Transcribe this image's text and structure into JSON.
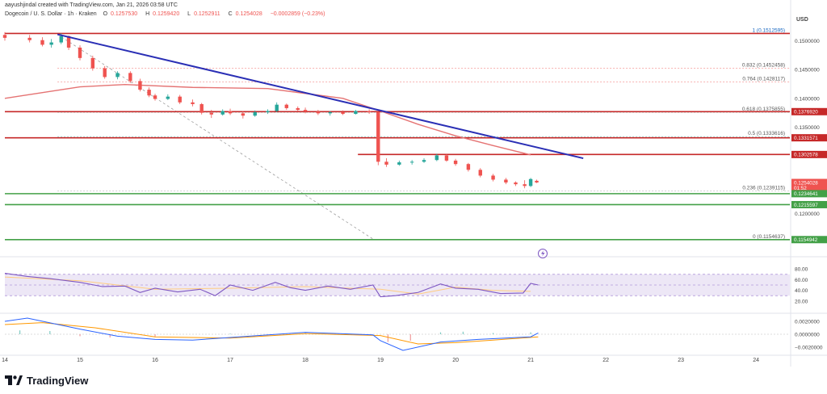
{
  "header": {
    "publisher": "aayushjindal created with TradingView.com, Jan 21, 2026 03:58 UTC",
    "symbol": "Dogecoin / U. S. Dollar · 1h · Kraken",
    "ohlc": [
      {
        "label": "O",
        "value": "0.1257530"
      },
      {
        "label": "H",
        "value": "0.1259420"
      },
      {
        "label": "L",
        "value": "0.1252911"
      },
      {
        "label": "C",
        "value": "0.1254028"
      },
      {
        "label": "",
        "value": "−0.0002859 (−0.23%)"
      }
    ]
  },
  "price_axis": {
    "currency": "USD",
    "ticks": [
      "0.1500000",
      "0.1450000",
      "0.1400000",
      "0.1350000",
      "0.1200000"
    ]
  },
  "price_tags": [
    {
      "text": "0.1376920",
      "price": 0.137692,
      "color": "#c62828"
    },
    {
      "text": "0.1331571",
      "price": 0.1331571,
      "color": "#c62828"
    },
    {
      "text": "0.1302578",
      "price": 0.1302578,
      "color": "#c62828"
    },
    {
      "text": "0.1254028",
      "price": 0.1254028,
      "color": "#ef5350",
      "sub": "01:52"
    },
    {
      "text": "0.1234641",
      "price": 0.1234641,
      "color": "#43a047"
    },
    {
      "text": "0.1215597",
      "price": 0.1215597,
      "color": "#43a047"
    },
    {
      "text": "0.1154942",
      "price": 0.1154942,
      "color": "#43a047"
    }
  ],
  "fibonacci": [
    {
      "label": "1 (0.1512595)",
      "level": 1,
      "price": 0.1512595
    },
    {
      "label": "0.832 (0.1452458)",
      "level": 0.832,
      "price": 0.1452458
    },
    {
      "label": "0.764 (0.1428117)",
      "level": 0.764,
      "price": 0.1428117
    },
    {
      "label": "0.618 (0.1375855)",
      "level": 0.618,
      "price": 0.1375855
    },
    {
      "label": "0.5 (0.1333616)",
      "level": 0.5,
      "price": 0.1333616
    },
    {
      "label": "0.236 (0.1239115)",
      "level": 0.236,
      "price": 0.1239115
    },
    {
      "label": "0 (0.1154637)",
      "level": 0,
      "price": 0.1154637
    }
  ],
  "time_axis": [
    "14",
    "15",
    "16",
    "17",
    "18",
    "19",
    "20",
    "21",
    "22",
    "23",
    "24"
  ],
  "rsi_axis": [
    "80.00",
    "60.00",
    "40.00",
    "20.00"
  ],
  "macd_axis": [
    "0.0020000",
    "0.0000000",
    "−0.0020000"
  ],
  "colors": {
    "up": "#26a69a",
    "down": "#ef5350",
    "resistance": "#c62828",
    "support": "#43a047",
    "trendline": "#2a2fb5",
    "ma": "#e57373",
    "rsi": "#7e57c2",
    "rsi_band": "#ede7f6",
    "macd": "#2962ff",
    "signal": "#ff9800"
  },
  "footer": {
    "brand": "TradingView",
    "logo_icon": "tradingview-logo-icon"
  },
  "chart_data": {
    "type": "candlestick",
    "x_unit": "day of January (hourly bars)",
    "y_unit": "USD",
    "ylim": [
      0.1128,
      0.1537
    ],
    "xlim": [
      14.0,
      24.45
    ],
    "ohlc": [
      [
        14.0,
        0.151,
        0.1515,
        0.15,
        0.1505
      ],
      [
        14.33,
        0.1505,
        0.151,
        0.1497,
        0.1501
      ],
      [
        14.5,
        0.1501,
        0.1506,
        0.149,
        0.1493
      ],
      [
        14.62,
        0.1493,
        0.1503,
        0.1488,
        0.1497
      ],
      [
        14.75,
        0.1497,
        0.1513,
        0.1494,
        0.1508
      ],
      [
        14.85,
        0.1508,
        0.1509,
        0.1484,
        0.1488
      ],
      [
        15.0,
        0.1488,
        0.1492,
        0.1466,
        0.147
      ],
      [
        15.17,
        0.147,
        0.1474,
        0.1448,
        0.1452
      ],
      [
        15.33,
        0.1452,
        0.1456,
        0.1434,
        0.1437
      ],
      [
        15.5,
        0.1437,
        0.1447,
        0.1433,
        0.1444
      ],
      [
        15.67,
        0.1444,
        0.1447,
        0.1427,
        0.143
      ],
      [
        15.8,
        0.143,
        0.1434,
        0.1412,
        0.1415
      ],
      [
        15.92,
        0.1415,
        0.1419,
        0.1402,
        0.1405
      ],
      [
        16.0,
        0.1405,
        0.1408,
        0.1396,
        0.1399
      ],
      [
        16.17,
        0.1399,
        0.1407,
        0.1397,
        0.1403
      ],
      [
        16.33,
        0.1403,
        0.1406,
        0.139,
        0.1393
      ],
      [
        16.5,
        0.1393,
        0.1398,
        0.1386,
        0.139
      ],
      [
        16.62,
        0.139,
        0.1392,
        0.1372,
        0.1375
      ],
      [
        16.75,
        0.1375,
        0.138,
        0.1366,
        0.1372
      ],
      [
        16.9,
        0.1372,
        0.1381,
        0.137,
        0.1378
      ],
      [
        17.0,
        0.1378,
        0.1382,
        0.1371,
        0.1374
      ],
      [
        17.17,
        0.1374,
        0.1378,
        0.1365,
        0.137
      ],
      [
        17.33,
        0.137,
        0.1379,
        0.1368,
        0.1376
      ],
      [
        17.5,
        0.1376,
        0.1381,
        0.1373,
        0.1378
      ],
      [
        17.62,
        0.1378,
        0.1393,
        0.1376,
        0.1389
      ],
      [
        17.75,
        0.1389,
        0.1391,
        0.138,
        0.1383
      ],
      [
        17.9,
        0.1383,
        0.1386,
        0.1377,
        0.138
      ],
      [
        18.0,
        0.138,
        0.1384,
        0.1374,
        0.1377
      ],
      [
        18.17,
        0.1377,
        0.138,
        0.1371,
        0.1374
      ],
      [
        18.33,
        0.1374,
        0.1378,
        0.137,
        0.1376
      ],
      [
        18.5,
        0.1376,
        0.1379,
        0.1371,
        0.1373
      ],
      [
        18.67,
        0.1373,
        0.138,
        0.1372,
        0.1378
      ],
      [
        18.85,
        0.1378,
        0.1381,
        0.1373,
        0.1376
      ],
      [
        18.97,
        0.1376,
        0.1377,
        0.1284,
        0.129
      ],
      [
        19.08,
        0.129,
        0.1296,
        0.1281,
        0.1285
      ],
      [
        19.25,
        0.1285,
        0.1292,
        0.1283,
        0.1289
      ],
      [
        19.42,
        0.1289,
        0.1293,
        0.1285,
        0.129
      ],
      [
        19.58,
        0.129,
        0.1296,
        0.1288,
        0.1293
      ],
      [
        19.75,
        0.1293,
        0.1304,
        0.1291,
        0.1301
      ],
      [
        19.88,
        0.1301,
        0.1303,
        0.129,
        0.1292
      ],
      [
        20.0,
        0.1292,
        0.1295,
        0.1283,
        0.1286
      ],
      [
        20.17,
        0.1286,
        0.1288,
        0.1273,
        0.1276
      ],
      [
        20.33,
        0.1276,
        0.1279,
        0.1263,
        0.1266
      ],
      [
        20.5,
        0.1266,
        0.1269,
        0.1256,
        0.1259
      ],
      [
        20.67,
        0.1259,
        0.1262,
        0.1251,
        0.1254
      ],
      [
        20.8,
        0.1254,
        0.1256,
        0.1248,
        0.1251
      ],
      [
        20.92,
        0.1251,
        0.1258,
        0.1244,
        0.1248
      ],
      [
        21.0,
        0.1248,
        0.1262,
        0.1246,
        0.126
      ],
      [
        21.08,
        0.1257,
        0.1259,
        0.1253,
        0.1254
      ]
    ],
    "moving_average": [
      [
        14.0,
        0.14
      ],
      [
        15.0,
        0.142
      ],
      [
        15.6,
        0.1424
      ],
      [
        16.5,
        0.1419
      ],
      [
        17.5,
        0.1417
      ],
      [
        18.5,
        0.14
      ],
      [
        19.0,
        0.1378
      ],
      [
        19.5,
        0.1355
      ],
      [
        20.0,
        0.1335
      ],
      [
        20.5,
        0.1318
      ],
      [
        21.0,
        0.1302
      ]
    ],
    "trendline": [
      [
        14.7,
        0.1511
      ],
      [
        21.7,
        0.1296
      ]
    ],
    "fib_diagonal": [
      [
        14.7,
        0.1511
      ],
      [
        18.9,
        0.1156
      ]
    ],
    "horizontal_levels": [
      {
        "price": 0.1512595,
        "color": "#c62828",
        "from": 14.0
      },
      {
        "price": 0.137692,
        "color": "#c62828",
        "from": 14.0
      },
      {
        "price": 0.1331571,
        "color": "#c62828",
        "from": 14.0
      },
      {
        "price": 0.1302578,
        "color": "#c62828",
        "from": 18.7
      },
      {
        "price": 0.1234641,
        "color": "#43a047",
        "from": 14.0
      },
      {
        "price": 0.1215597,
        "color": "#43a047",
        "from": 14.0
      },
      {
        "price": 0.1154942,
        "color": "#43a047",
        "from": 14.0
      }
    ],
    "rsi": {
      "ylim": [
        0,
        100
      ],
      "band": [
        30,
        70
      ],
      "values": [
        [
          14.0,
          72
        ],
        [
          14.3,
          66
        ],
        [
          14.6,
          62
        ],
        [
          15.0,
          55
        ],
        [
          15.3,
          47
        ],
        [
          15.6,
          48
        ],
        [
          15.8,
          36
        ],
        [
          16.0,
          44
        ],
        [
          16.3,
          37
        ],
        [
          16.6,
          42
        ],
        [
          16.8,
          30
        ],
        [
          17.0,
          50
        ],
        [
          17.3,
          40
        ],
        [
          17.6,
          55
        ],
        [
          17.8,
          45
        ],
        [
          18.0,
          40
        ],
        [
          18.3,
          48
        ],
        [
          18.6,
          42
        ],
        [
          18.9,
          50
        ],
        [
          19.0,
          28
        ],
        [
          19.2,
          30
        ],
        [
          19.5,
          36
        ],
        [
          19.8,
          52
        ],
        [
          20.0,
          44
        ],
        [
          20.3,
          42
        ],
        [
          20.6,
          34
        ],
        [
          20.9,
          35
        ],
        [
          21.0,
          53
        ],
        [
          21.1,
          50
        ]
      ],
      "signal": [
        [
          14.0,
          65
        ],
        [
          15.0,
          58
        ],
        [
          16.0,
          42
        ],
        [
          17.0,
          44
        ],
        [
          18.0,
          47
        ],
        [
          19.0,
          42
        ],
        [
          19.5,
          33
        ],
        [
          20.0,
          46
        ],
        [
          20.5,
          40
        ],
        [
          21.0,
          38
        ]
      ]
    },
    "macd": {
      "ylim": [
        -0.003,
        0.003
      ],
      "macd": [
        [
          14.0,
          0.002
        ],
        [
          14.3,
          0.0025
        ],
        [
          15.0,
          0.0008
        ],
        [
          15.5,
          -0.0003
        ],
        [
          16.0,
          -0.0008
        ],
        [
          16.5,
          -0.0009
        ],
        [
          17.0,
          -0.0005
        ],
        [
          18.0,
          0.0003
        ],
        [
          18.9,
          -0.0001
        ],
        [
          19.0,
          -0.001
        ],
        [
          19.3,
          -0.0025
        ],
        [
          19.8,
          -0.0012
        ],
        [
          20.3,
          -0.0008
        ],
        [
          21.0,
          -0.0004
        ],
        [
          21.1,
          0.0002
        ]
      ],
      "signal": [
        [
          14.0,
          0.0015
        ],
        [
          14.5,
          0.0018
        ],
        [
          15.2,
          0.001
        ],
        [
          16.0,
          -0.0004
        ],
        [
          17.0,
          -0.0006
        ],
        [
          18.0,
          0.0001
        ],
        [
          19.0,
          -0.0002
        ],
        [
          19.5,
          -0.0015
        ],
        [
          20.0,
          -0.0013
        ],
        [
          20.5,
          -0.0009
        ],
        [
          21.1,
          -0.0004
        ]
      ],
      "histogram": [
        [
          14.2,
          0.0006
        ],
        [
          14.6,
          0.0005
        ],
        [
          15.0,
          -0.0003
        ],
        [
          15.4,
          -0.0005
        ],
        [
          16.0,
          -0.0004
        ],
        [
          17.0,
          0.0001
        ],
        [
          18.0,
          0.0002
        ],
        [
          19.1,
          -0.0012
        ],
        [
          19.4,
          -0.001
        ],
        [
          19.8,
          0.0003
        ],
        [
          20.1,
          0.0004
        ],
        [
          20.5,
          0.0002
        ],
        [
          21.0,
          0.0003
        ]
      ]
    }
  }
}
